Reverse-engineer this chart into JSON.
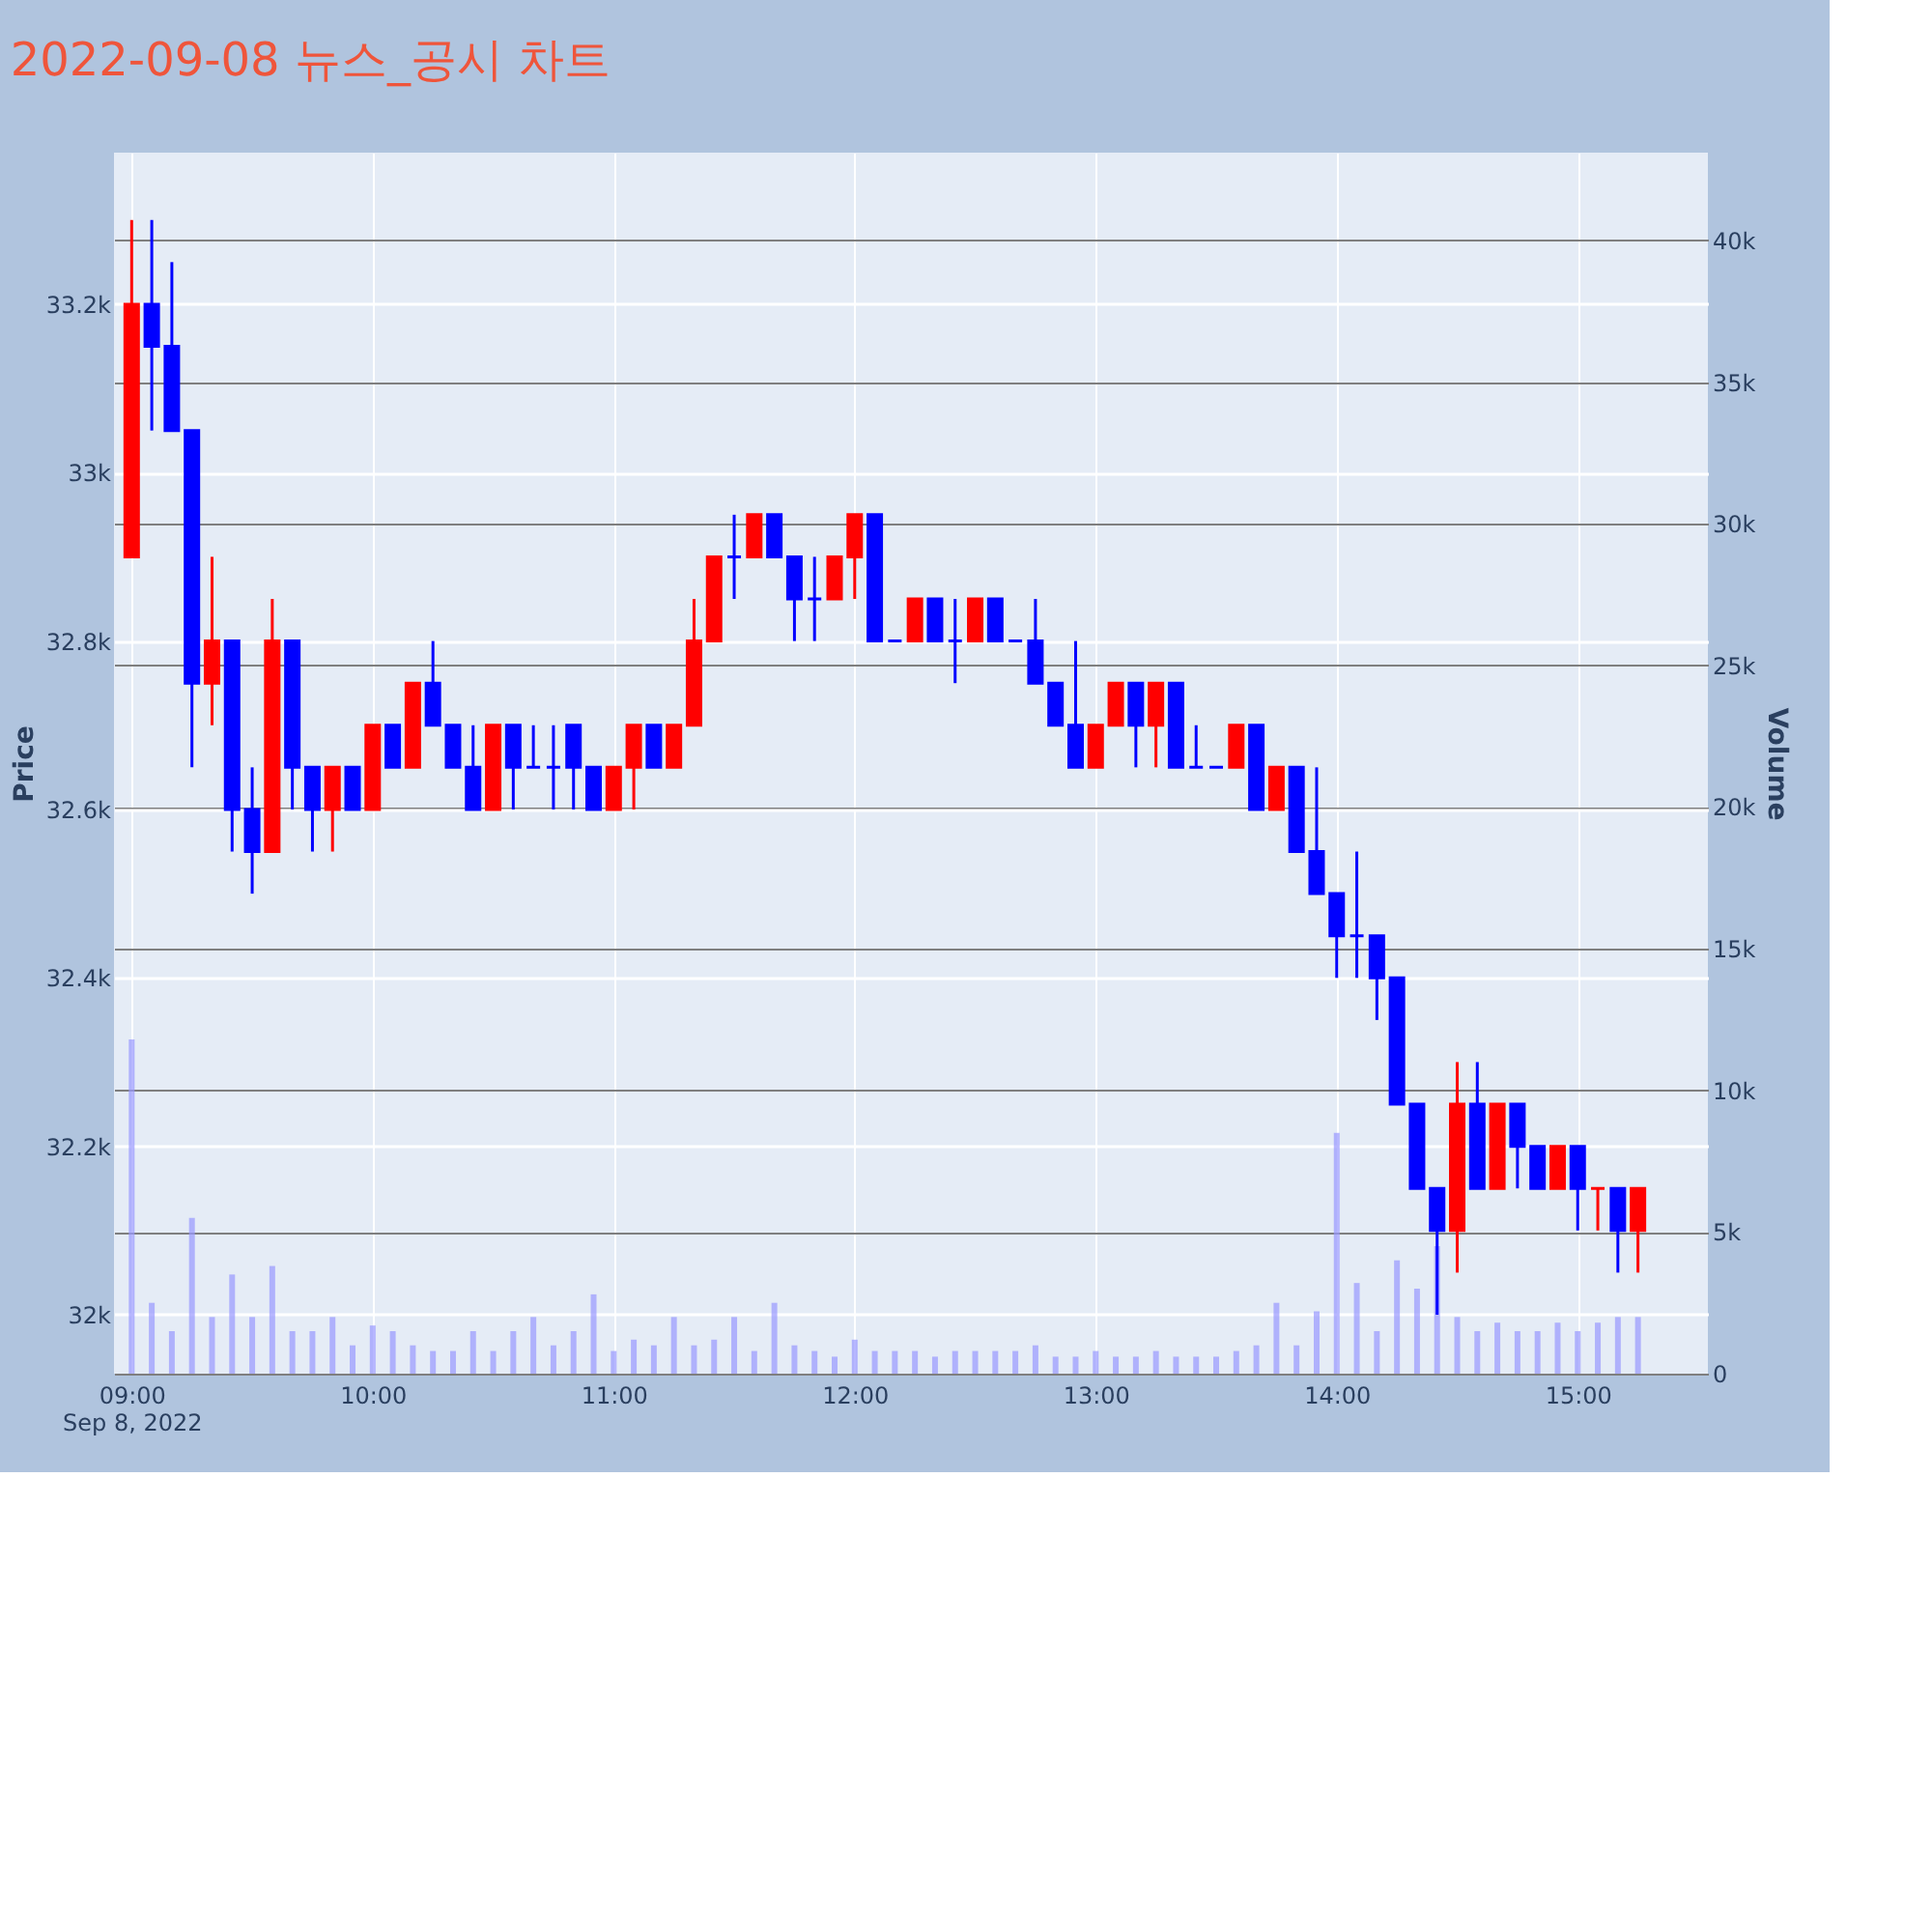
{
  "chart_data": {
    "type": "candlestick",
    "title": "2022-09-08 뉴스_공시 차트",
    "ylabel": "Price",
    "y2label": "Volume",
    "x": [
      "2022-09-08T09:00",
      "2022-09-08T09:05",
      "2022-09-08T09:10",
      "2022-09-08T09:15",
      "2022-09-08T09:20",
      "2022-09-08T09:25",
      "2022-09-08T09:30",
      "2022-09-08T09:35",
      "2022-09-08T09:40",
      "2022-09-08T09:45",
      "2022-09-08T09:50",
      "2022-09-08T09:55",
      "2022-09-08T10:00",
      "2022-09-08T10:05",
      "2022-09-08T10:10",
      "2022-09-08T10:15",
      "2022-09-08T10:20",
      "2022-09-08T10:25",
      "2022-09-08T10:30",
      "2022-09-08T10:35",
      "2022-09-08T10:40",
      "2022-09-08T10:45",
      "2022-09-08T10:50",
      "2022-09-08T10:55",
      "2022-09-08T11:00",
      "2022-09-08T11:05",
      "2022-09-08T11:10",
      "2022-09-08T11:15",
      "2022-09-08T11:20",
      "2022-09-08T11:25",
      "2022-09-08T11:30",
      "2022-09-08T11:35",
      "2022-09-08T11:40",
      "2022-09-08T11:45",
      "2022-09-08T11:50",
      "2022-09-08T11:55",
      "2022-09-08T12:00",
      "2022-09-08T12:05",
      "2022-09-08T12:10",
      "2022-09-08T12:15",
      "2022-09-08T12:20",
      "2022-09-08T12:25",
      "2022-09-08T12:30",
      "2022-09-08T12:35",
      "2022-09-08T12:40",
      "2022-09-08T12:45",
      "2022-09-08T12:50",
      "2022-09-08T12:55",
      "2022-09-08T13:00",
      "2022-09-08T13:05",
      "2022-09-08T13:10",
      "2022-09-08T13:15",
      "2022-09-08T13:20",
      "2022-09-08T13:25",
      "2022-09-08T13:30",
      "2022-09-08T13:35",
      "2022-09-08T13:40",
      "2022-09-08T13:45",
      "2022-09-08T13:50",
      "2022-09-08T13:55",
      "2022-09-08T14:00",
      "2022-09-08T14:05",
      "2022-09-08T14:10",
      "2022-09-08T14:15",
      "2022-09-08T14:20",
      "2022-09-08T14:25",
      "2022-09-08T14:30",
      "2022-09-08T14:35",
      "2022-09-08T14:40",
      "2022-09-08T14:45",
      "2022-09-08T14:50",
      "2022-09-08T14:55",
      "2022-09-08T15:00",
      "2022-09-08T15:05",
      "2022-09-08T15:10",
      "2022-09-08T15:15"
    ],
    "ohlc": [
      [
        32900,
        33300,
        32900,
        33200
      ],
      [
        33200,
        33300,
        33050,
        33150
      ],
      [
        33150,
        33250,
        33050,
        33050
      ],
      [
        33050,
        33050,
        32650,
        32750
      ],
      [
        32750,
        32900,
        32700,
        32800
      ],
      [
        32800,
        32800,
        32550,
        32600
      ],
      [
        32600,
        32650,
        32500,
        32550
      ],
      [
        32550,
        32850,
        32550,
        32800
      ],
      [
        32800,
        32800,
        32600,
        32650
      ],
      [
        32650,
        32650,
        32550,
        32600
      ],
      [
        32600,
        32650,
        32550,
        32650
      ],
      [
        32650,
        32650,
        32600,
        32600
      ],
      [
        32600,
        32700,
        32600,
        32700
      ],
      [
        32700,
        32700,
        32650,
        32650
      ],
      [
        32650,
        32750,
        32650,
        32750
      ],
      [
        32750,
        32800,
        32700,
        32700
      ],
      [
        32700,
        32700,
        32650,
        32650
      ],
      [
        32650,
        32700,
        32600,
        32600
      ],
      [
        32600,
        32700,
        32600,
        32700
      ],
      [
        32700,
        32700,
        32600,
        32650
      ],
      [
        32650,
        32700,
        32650,
        32650
      ],
      [
        32650,
        32700,
        32600,
        32650
      ],
      [
        32700,
        32700,
        32600,
        32650
      ],
      [
        32650,
        32650,
        32600,
        32600
      ],
      [
        32600,
        32650,
        32600,
        32650
      ],
      [
        32650,
        32700,
        32600,
        32700
      ],
      [
        32700,
        32700,
        32650,
        32650
      ],
      [
        32650,
        32700,
        32650,
        32700
      ],
      [
        32700,
        32850,
        32700,
        32800
      ],
      [
        32800,
        32900,
        32800,
        32900
      ],
      [
        32900,
        32950,
        32850,
        32900
      ],
      [
        32900,
        32950,
        32900,
        32950
      ],
      [
        32950,
        32950,
        32900,
        32900
      ],
      [
        32900,
        32900,
        32800,
        32850
      ],
      [
        32850,
        32900,
        32800,
        32850
      ],
      [
        32850,
        32900,
        32850,
        32900
      ],
      [
        32900,
        32950,
        32850,
        32950
      ],
      [
        32950,
        32950,
        32800,
        32800
      ],
      [
        32800,
        32800,
        32800,
        32800
      ],
      [
        32800,
        32850,
        32800,
        32850
      ],
      [
        32850,
        32850,
        32800,
        32800
      ],
      [
        32800,
        32850,
        32750,
        32800
      ],
      [
        32800,
        32850,
        32800,
        32850
      ],
      [
        32850,
        32850,
        32800,
        32800
      ],
      [
        32800,
        32800,
        32800,
        32800
      ],
      [
        32800,
        32850,
        32750,
        32750
      ],
      [
        32750,
        32750,
        32700,
        32700
      ],
      [
        32700,
        32800,
        32650,
        32650
      ],
      [
        32650,
        32700,
        32650,
        32700
      ],
      [
        32700,
        32750,
        32700,
        32750
      ],
      [
        32750,
        32750,
        32650,
        32700
      ],
      [
        32700,
        32750,
        32650,
        32750
      ],
      [
        32750,
        32750,
        32650,
        32650
      ],
      [
        32650,
        32700,
        32650,
        32650
      ],
      [
        32650,
        32650,
        32650,
        32650
      ],
      [
        32650,
        32700,
        32650,
        32700
      ],
      [
        32700,
        32700,
        32600,
        32600
      ],
      [
        32600,
        32650,
        32600,
        32650
      ],
      [
        32650,
        32650,
        32550,
        32550
      ],
      [
        32550,
        32650,
        32500,
        32500
      ],
      [
        32500,
        32500,
        32400,
        32450
      ],
      [
        32450,
        32550,
        32400,
        32450
      ],
      [
        32450,
        32450,
        32350,
        32400
      ],
      [
        32400,
        32400,
        32250,
        32250
      ],
      [
        32250,
        32250,
        32150,
        32150
      ],
      [
        32150,
        32150,
        32000,
        32100
      ],
      [
        32100,
        32300,
        32050,
        32250
      ],
      [
        32250,
        32300,
        32150,
        32150
      ],
      [
        32150,
        32250,
        32150,
        32250
      ],
      [
        32250,
        32250,
        32150,
        32200
      ],
      [
        32200,
        32200,
        32150,
        32150
      ],
      [
        32150,
        32200,
        32150,
        32200
      ],
      [
        32200,
        32200,
        32100,
        32150
      ],
      [
        32150,
        32150,
        32100,
        32150
      ],
      [
        32150,
        32150,
        32050,
        32100
      ],
      [
        32100,
        32150,
        32050,
        32150
      ]
    ],
    "colors": [
      "#ff0000",
      "#0000ff",
      "#0000ff",
      "#0000ff",
      "#ff0000",
      "#0000ff",
      "#0000ff",
      "#ff0000",
      "#0000ff",
      "#0000ff",
      "#ff0000",
      "#0000ff",
      "#ff0000",
      "#0000ff",
      "#ff0000",
      "#0000ff",
      "#0000ff",
      "#0000ff",
      "#ff0000",
      "#0000ff",
      "#0000ff",
      "#0000ff",
      "#0000ff",
      "#0000ff",
      "#ff0000",
      "#ff0000",
      "#0000ff",
      "#ff0000",
      "#ff0000",
      "#ff0000",
      "#0000ff",
      "#ff0000",
      "#0000ff",
      "#0000ff",
      "#0000ff",
      "#ff0000",
      "#ff0000",
      "#0000ff",
      "#0000ff",
      "#ff0000",
      "#0000ff",
      "#0000ff",
      "#ff0000",
      "#0000ff",
      "#0000ff",
      "#0000ff",
      "#0000ff",
      "#0000ff",
      "#ff0000",
      "#ff0000",
      "#0000ff",
      "#ff0000",
      "#0000ff",
      "#0000ff",
      "#0000ff",
      "#ff0000",
      "#0000ff",
      "#ff0000",
      "#0000ff",
      "#0000ff",
      "#0000ff",
      "#0000ff",
      "#0000ff",
      "#0000ff",
      "#0000ff",
      "#0000ff",
      "#ff0000",
      "#0000ff",
      "#ff0000",
      "#0000ff",
      "#0000ff",
      "#ff0000",
      "#0000ff",
      "#ff0000",
      "#0000ff",
      "#ff0000"
    ],
    "series": [
      {
        "type": "bar",
        "axis": "y2",
        "color": "#9999ff",
        "values": [
          11800,
          2500,
          1500,
          5500,
          2000,
          3500,
          2000,
          3800,
          1500,
          1500,
          2000,
          1000,
          1700,
          1500,
          1000,
          800,
          800,
          1500,
          800,
          1500,
          2000,
          1000,
          1500,
          2800,
          800,
          1200,
          1000,
          2000,
          1000,
          1200,
          2000,
          800,
          2500,
          1000,
          800,
          600,
          1200,
          800,
          800,
          800,
          600,
          800,
          800,
          800,
          800,
          1000,
          600,
          600,
          800,
          600,
          600,
          800,
          600,
          600,
          600,
          800,
          1000,
          2500,
          1000,
          2200,
          8500,
          3200,
          1500,
          4000,
          3000,
          4500,
          2000,
          1500,
          1800,
          1500,
          1500,
          1800,
          1500,
          1800,
          2000,
          2000
        ]
      }
    ],
    "xlim": [
      "2022-09-08T08:58",
      "2022-09-08T15:30"
    ],
    "xticks": [
      {
        "value": "2022-09-08T09:00",
        "label": "09:00\nSep 8, 2022"
      },
      {
        "value": "2022-09-08T10:00",
        "label": "10:00"
      },
      {
        "value": "2022-09-08T11:00",
        "label": "11:00"
      },
      {
        "value": "2022-09-08T12:00",
        "label": "12:00"
      },
      {
        "value": "2022-09-08T13:00",
        "label": "13:00"
      },
      {
        "value": "2022-09-08T14:00",
        "label": "14:00"
      },
      {
        "value": "2022-09-08T15:00",
        "label": "15:00"
      }
    ],
    "ylim": [
      31930,
      33380
    ],
    "yticks": [
      {
        "value": 32000,
        "label": "32k"
      },
      {
        "value": 32200,
        "label": "32.2k"
      },
      {
        "value": 32400,
        "label": "32.4k"
      },
      {
        "value": 32600,
        "label": "32.6k"
      },
      {
        "value": 32800,
        "label": "32.8k"
      },
      {
        "value": 33000,
        "label": "33k"
      },
      {
        "value": 33200,
        "label": "33.2k"
      }
    ],
    "y2lim": [
      0,
      43100
    ],
    "y2ticks": [
      0,
      {
        "value": 5000,
        "label": "5k"
      },
      {
        "value": 10000,
        "label": "10k"
      },
      {
        "value": 15000,
        "label": "15k"
      },
      {
        "value": 20000,
        "label": "20k"
      },
      {
        "value": 25000,
        "label": "25k"
      },
      {
        "value": 30000,
        "label": "30k"
      },
      {
        "value": 35000,
        "label": "35k"
      },
      {
        "value": 40000,
        "label": "40k"
      }
    ],
    "grid": true
  }
}
